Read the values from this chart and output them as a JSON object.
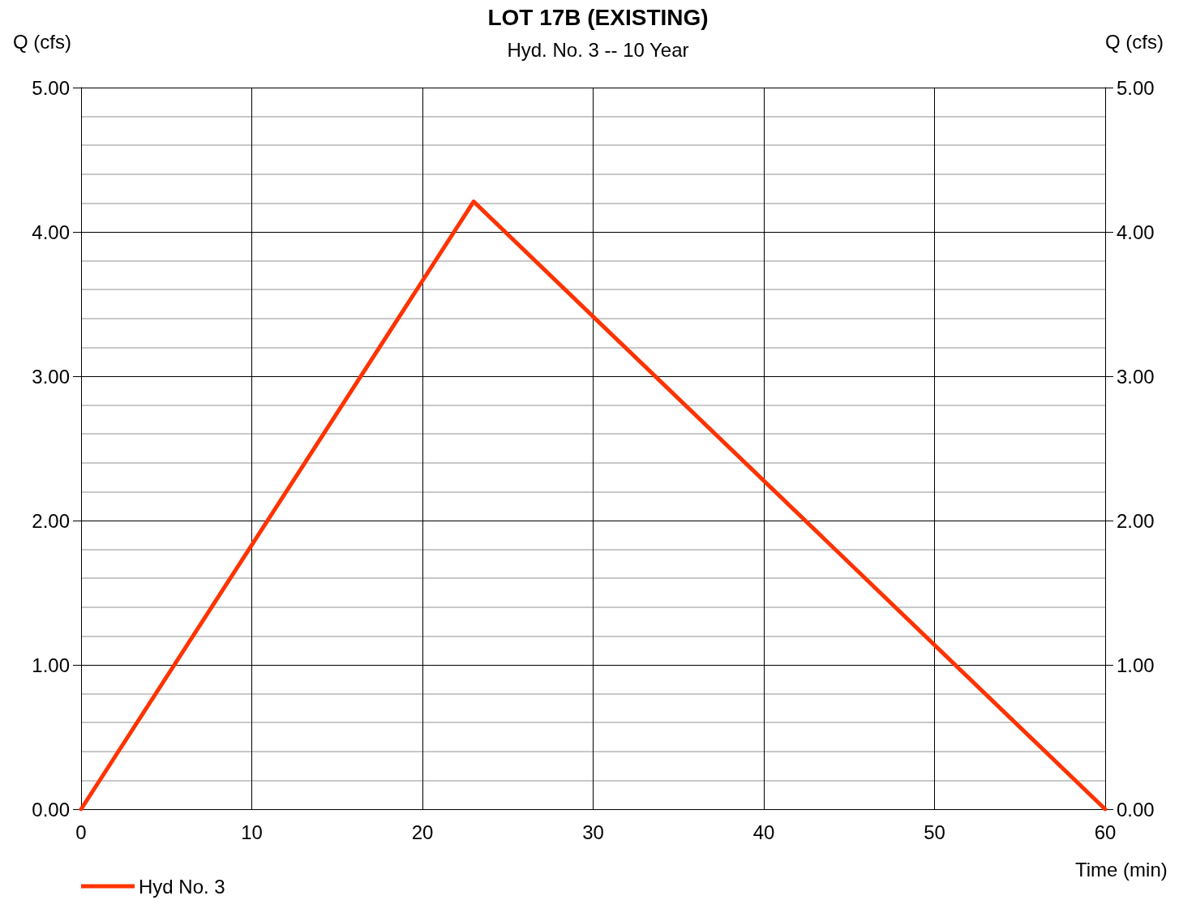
{
  "chart_data": {
    "type": "line",
    "title": "LOT 17B (EXISTING)",
    "subtitle": "Hyd. No. 3 -- 10 Year",
    "xlabel": "Time (min)",
    "ylabel": "Q (cfs)",
    "y2label": "Q (cfs)",
    "series": [
      {
        "name": "Hyd No. 3",
        "color": "#ff3300",
        "x": [
          0,
          23,
          60
        ],
        "values": [
          0,
          4.21,
          0
        ]
      }
    ],
    "xlim": [
      0,
      60
    ],
    "xticks": [
      0,
      10,
      20,
      30,
      40,
      50,
      60
    ],
    "ylim": [
      0,
      5
    ],
    "yticks": [
      {
        "value": 0,
        "label": "0.00"
      },
      {
        "value": 1,
        "label": "1.00"
      },
      {
        "value": 2,
        "label": "2.00"
      },
      {
        "value": 3,
        "label": "3.00"
      },
      {
        "value": 4,
        "label": "4.00"
      },
      {
        "value": 5,
        "label": "5.00"
      }
    ],
    "y2lim": [
      0,
      5
    ],
    "y2ticks": [
      {
        "value": 0,
        "label": "0.00"
      },
      {
        "value": 1,
        "label": "1.00"
      },
      {
        "value": 2,
        "label": "2.00"
      },
      {
        "value": 3,
        "label": "3.00"
      },
      {
        "value": 4,
        "label": "4.00"
      },
      {
        "value": 5,
        "label": "5.00"
      }
    ],
    "grid": true,
    "legend": "bottom left",
    "marker": "none",
    "line_style": "solid"
  }
}
